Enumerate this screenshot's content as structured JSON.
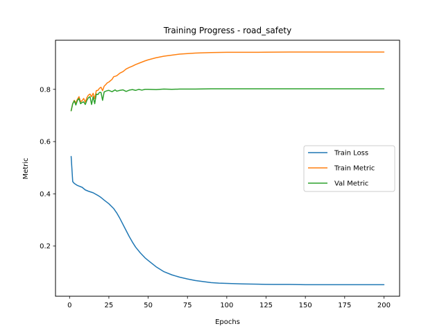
{
  "chart_data": {
    "type": "line",
    "title": "Training Progress - road_safety",
    "xlabel": "Epochs",
    "ylabel": "Metric",
    "xlim": [
      -8.95,
      209.95
    ],
    "ylim": [
      0.008,
      0.988
    ],
    "xticks": [
      0,
      25,
      50,
      75,
      100,
      125,
      150,
      175,
      200
    ],
    "yticks": [
      0.2,
      0.4,
      0.6,
      0.8
    ],
    "grid": false,
    "legend_position": "center-right",
    "series": [
      {
        "name": "Train Loss",
        "color": "#1f77b4",
        "x": [
          1,
          2,
          3,
          5,
          8,
          10,
          12,
          15,
          18,
          20,
          22,
          25,
          28,
          30,
          32,
          35,
          38,
          40,
          42,
          45,
          48,
          50,
          55,
          60,
          65,
          70,
          75,
          80,
          85,
          90,
          95,
          100,
          110,
          120,
          130,
          140,
          150,
          160,
          170,
          180,
          190,
          200
        ],
        "y": [
          0.543,
          0.447,
          0.44,
          0.432,
          0.425,
          0.415,
          0.41,
          0.404,
          0.394,
          0.386,
          0.376,
          0.362,
          0.344,
          0.327,
          0.306,
          0.271,
          0.236,
          0.215,
          0.196,
          0.174,
          0.155,
          0.145,
          0.121,
          0.102,
          0.09,
          0.081,
          0.074,
          0.068,
          0.064,
          0.06,
          0.058,
          0.057,
          0.055,
          0.054,
          0.053,
          0.053,
          0.052,
          0.052,
          0.052,
          0.052,
          0.052,
          0.052
        ]
      },
      {
        "name": "Train Metric",
        "color": "#ff7f0e",
        "x": [
          1,
          2,
          3,
          4,
          5,
          6,
          7,
          8,
          9,
          10,
          11,
          12,
          13,
          14,
          15,
          16,
          17,
          18,
          19,
          20,
          21,
          22,
          23,
          24,
          25,
          27,
          28,
          30,
          32,
          34,
          36,
          38,
          40,
          42,
          45,
          48,
          50,
          55,
          60,
          65,
          70,
          75,
          80,
          90,
          100,
          110,
          120,
          140,
          160,
          180,
          200
        ],
        "y": [
          0.718,
          0.745,
          0.758,
          0.748,
          0.762,
          0.772,
          0.752,
          0.757,
          0.765,
          0.751,
          0.768,
          0.778,
          0.782,
          0.772,
          0.785,
          0.764,
          0.795,
          0.796,
          0.804,
          0.808,
          0.795,
          0.812,
          0.818,
          0.825,
          0.828,
          0.838,
          0.848,
          0.852,
          0.862,
          0.868,
          0.878,
          0.884,
          0.889,
          0.895,
          0.902,
          0.909,
          0.913,
          0.921,
          0.927,
          0.931,
          0.935,
          0.937,
          0.939,
          0.941,
          0.942,
          0.942,
          0.942,
          0.943,
          0.943,
          0.943,
          0.943
        ]
      },
      {
        "name": "Val Metric",
        "color": "#2ca02c",
        "x": [
          1,
          2,
          3,
          4,
          5,
          6,
          7,
          8,
          9,
          10,
          11,
          12,
          13,
          14,
          15,
          16,
          17,
          18,
          19,
          20,
          21,
          22,
          23,
          24,
          25,
          27,
          29,
          30,
          32,
          34,
          36,
          38,
          40,
          42,
          44,
          46,
          48,
          50,
          55,
          60,
          65,
          70,
          80,
          90,
          100,
          120,
          150,
          175,
          200
        ],
        "y": [
          0.718,
          0.745,
          0.756,
          0.74,
          0.758,
          0.765,
          0.745,
          0.75,
          0.752,
          0.742,
          0.758,
          0.768,
          0.772,
          0.742,
          0.772,
          0.745,
          0.782,
          0.78,
          0.788,
          0.788,
          0.758,
          0.79,
          0.793,
          0.795,
          0.796,
          0.791,
          0.798,
          0.793,
          0.796,
          0.798,
          0.792,
          0.797,
          0.799,
          0.796,
          0.8,
          0.797,
          0.8,
          0.8,
          0.799,
          0.801,
          0.8,
          0.801,
          0.801,
          0.802,
          0.802,
          0.802,
          0.802,
          0.802,
          0.802
        ]
      }
    ]
  }
}
